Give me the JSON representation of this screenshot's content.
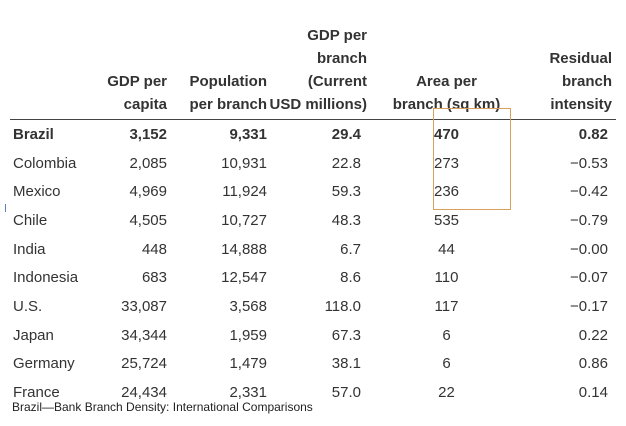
{
  "table": {
    "headers": {
      "country": "",
      "gdp_per_capita": [
        "GDP per",
        "capita"
      ],
      "population_per_branch": [
        "Population",
        "per branch"
      ],
      "gdp_per_branch": [
        "GDP per",
        "branch (Current",
        "USD millions)"
      ],
      "area_per_branch": [
        "Area per",
        "branch (sq km)"
      ],
      "residual_intensity": [
        "Residual",
        "branch",
        "intensity"
      ]
    },
    "rows": [
      {
        "country": "Brazil",
        "gdp_per_capita": "3,152",
        "population_per_branch": "9,331",
        "gdp_per_branch": "29.4",
        "area_per_branch": "470",
        "residual_intensity": "0.82"
      },
      {
        "country": "Colombia",
        "gdp_per_capita": "2,085",
        "population_per_branch": "10,931",
        "gdp_per_branch": "22.8",
        "area_per_branch": "273",
        "residual_intensity": "−0.53"
      },
      {
        "country": "Mexico",
        "gdp_per_capita": "4,969",
        "population_per_branch": "11,924",
        "gdp_per_branch": "59.3",
        "area_per_branch": "236",
        "residual_intensity": "−0.42"
      },
      {
        "country": "Chile",
        "gdp_per_capita": "4,505",
        "population_per_branch": "10,727",
        "gdp_per_branch": "48.3",
        "area_per_branch": "535",
        "residual_intensity": "−0.79"
      },
      {
        "country": "India",
        "gdp_per_capita": "448",
        "population_per_branch": "14,888",
        "gdp_per_branch": "6.7",
        "area_per_branch": "44",
        "residual_intensity": "−0.00"
      },
      {
        "country": "Indonesia",
        "gdp_per_capita": "683",
        "population_per_branch": "12,547",
        "gdp_per_branch": "8.6",
        "area_per_branch": "110",
        "residual_intensity": "−0.07"
      },
      {
        "country": "U.S.",
        "gdp_per_capita": "33,087",
        "population_per_branch": "3,568",
        "gdp_per_branch": "118.0",
        "area_per_branch": "117",
        "residual_intensity": "−0.17"
      },
      {
        "country": "Japan",
        "gdp_per_capita": "34,344",
        "population_per_branch": "1,959",
        "gdp_per_branch": "67.3",
        "area_per_branch": "6",
        "residual_intensity": "0.22"
      },
      {
        "country": "Germany",
        "gdp_per_capita": "25,724",
        "population_per_branch": "1,479",
        "gdp_per_branch": "38.1",
        "area_per_branch": "6",
        "residual_intensity": "0.86"
      },
      {
        "country": "France",
        "gdp_per_capita": "24,434",
        "population_per_branch": "2,331",
        "gdp_per_branch": "57.0",
        "area_per_branch": "22",
        "residual_intensity": "0.14"
      }
    ]
  },
  "caption": "Brazil—Bank Branch Density: International Comparisons",
  "colors": {
    "highlight_border": "#d9a05b",
    "rule": "#444444",
    "text": "#333333"
  }
}
